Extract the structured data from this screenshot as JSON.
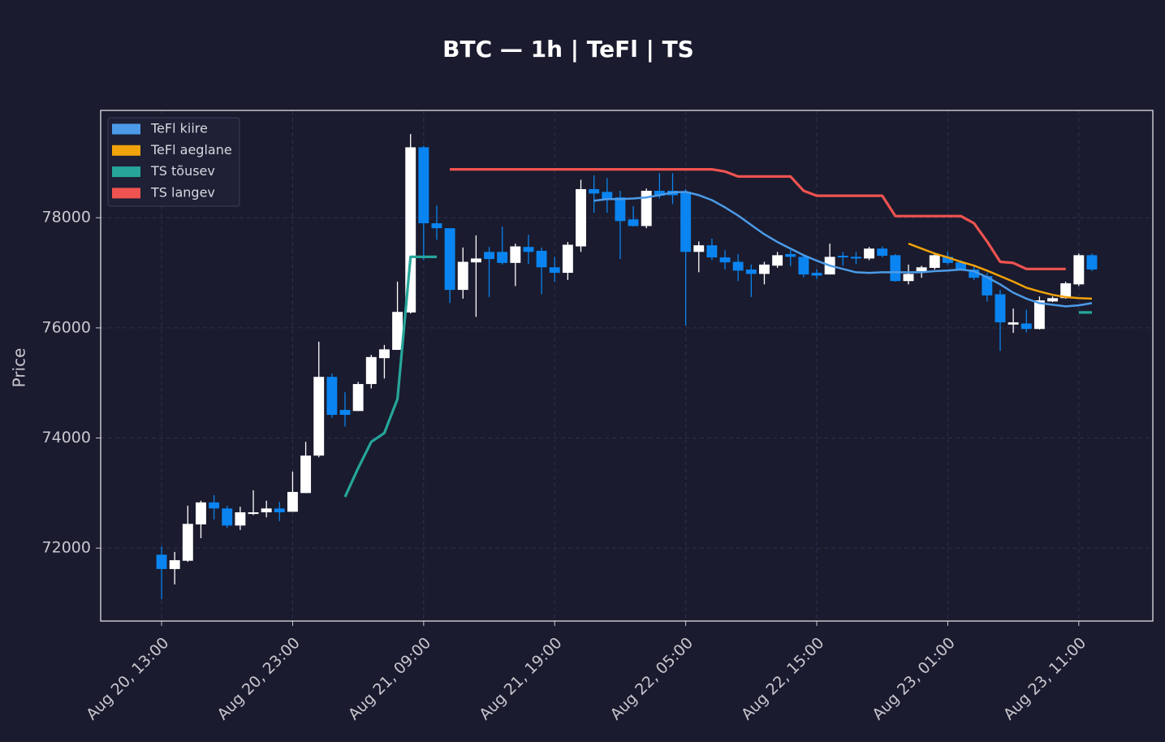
{
  "chart_data": {
    "type": "candlestick",
    "title": "BTC — 1h  |  TeFl  |  TS",
    "ylabel": "Price",
    "x": [
      "Aug 20, 13:00",
      "Aug 20, 14:00",
      "Aug 20, 15:00",
      "Aug 20, 16:00",
      "Aug 20, 17:00",
      "Aug 20, 18:00",
      "Aug 20, 19:00",
      "Aug 20, 20:00",
      "Aug 20, 21:00",
      "Aug 20, 22:00",
      "Aug 20, 23:00",
      "Aug 21, 00:00",
      "Aug 21, 01:00",
      "Aug 21, 02:00",
      "Aug 21, 03:00",
      "Aug 21, 04:00",
      "Aug 21, 05:00",
      "Aug 21, 06:00",
      "Aug 21, 07:00",
      "Aug 21, 08:00",
      "Aug 21, 09:00",
      "Aug 21, 10:00",
      "Aug 21, 11:00",
      "Aug 21, 12:00",
      "Aug 21, 13:00",
      "Aug 21, 14:00",
      "Aug 21, 15:00",
      "Aug 21, 16:00",
      "Aug 21, 17:00",
      "Aug 21, 18:00",
      "Aug 21, 19:00",
      "Aug 21, 20:00",
      "Aug 21, 21:00",
      "Aug 21, 22:00",
      "Aug 21, 23:00",
      "Aug 22, 00:00",
      "Aug 22, 01:00",
      "Aug 22, 02:00",
      "Aug 22, 03:00",
      "Aug 22, 04:00",
      "Aug 22, 05:00",
      "Aug 22, 06:00",
      "Aug 22, 07:00",
      "Aug 22, 08:00",
      "Aug 22, 09:00",
      "Aug 22, 10:00",
      "Aug 22, 11:00",
      "Aug 22, 12:00",
      "Aug 22, 13:00",
      "Aug 22, 14:00",
      "Aug 22, 15:00",
      "Aug 22, 16:00",
      "Aug 22, 17:00",
      "Aug 22, 18:00",
      "Aug 22, 19:00",
      "Aug 22, 20:00",
      "Aug 22, 21:00",
      "Aug 22, 22:00",
      "Aug 22, 23:00",
      "Aug 23, 00:00",
      "Aug 23, 01:00",
      "Aug 23, 02:00",
      "Aug 23, 03:00",
      "Aug 23, 04:00",
      "Aug 23, 05:00",
      "Aug 23, 06:00",
      "Aug 23, 07:00",
      "Aug 23, 08:00",
      "Aug 23, 09:00",
      "Aug 23, 10:00",
      "Aug 23, 11:00",
      "Aug 23, 12:00"
    ],
    "xticks": [
      "Aug 20, 13:00",
      "Aug 20, 23:00",
      "Aug 21, 09:00",
      "Aug 21, 19:00",
      "Aug 22, 05:00",
      "Aug 22, 15:00",
      "Aug 23, 01:00",
      "Aug 23, 11:00"
    ],
    "open": [
      71880,
      71620,
      71770,
      72430,
      72830,
      72720,
      72410,
      72620,
      72650,
      72720,
      72660,
      73000,
      73680,
      75110,
      74510,
      74490,
      74980,
      75450,
      75600,
      76280,
      79280,
      77900,
      77810,
      76690,
      77190,
      77380,
      77380,
      77180,
      77470,
      77400,
      77100,
      77000,
      77480,
      78520,
      78470,
      78370,
      77970,
      77850,
      78490,
      78490,
      78470,
      77380,
      77500,
      77280,
      77200,
      77060,
      76980,
      77130,
      77340,
      77290,
      77000,
      76970,
      77310,
      77290,
      77260,
      77440,
      77320,
      76850,
      77030,
      77090,
      77290,
      77190,
      77060,
      76940,
      76610,
      76060,
      76080,
      75980,
      76480,
      76540,
      76790,
      77320
    ],
    "high": [
      72030,
      71930,
      72770,
      72860,
      72960,
      72770,
      72750,
      73050,
      72860,
      72840,
      73390,
      73930,
      75750,
      75170,
      74830,
      75020,
      75510,
      75690,
      76840,
      79520,
      79310,
      78220,
      77810,
      77460,
      77680,
      77470,
      77840,
      77530,
      77690,
      77460,
      77290,
      77560,
      78690,
      78770,
      78720,
      78490,
      78210,
      78530,
      78810,
      78810,
      78520,
      77570,
      77620,
      77410,
      77340,
      77150,
      77200,
      77380,
      77410,
      77340,
      77070,
      77530,
      77380,
      77380,
      77470,
      77480,
      77340,
      77150,
      77130,
      77350,
      77380,
      77230,
      77120,
      77000,
      76690,
      76350,
      76330,
      76570,
      76570,
      76840,
      77350,
      77350
    ],
    "low": [
      71070,
      71340,
      71750,
      72180,
      72520,
      72370,
      72330,
      72600,
      72560,
      72490,
      72660,
      73000,
      73650,
      74370,
      74210,
      74490,
      74900,
      75080,
      75600,
      76260,
      77230,
      77600,
      76450,
      76530,
      76200,
      76560,
      77150,
      76760,
      77160,
      76610,
      76840,
      76870,
      77380,
      78090,
      78090,
      77250,
      77840,
      77810,
      78350,
      78250,
      76040,
      77010,
      77230,
      77060,
      76850,
      76560,
      76790,
      77090,
      77120,
      76920,
      76890,
      76970,
      77130,
      77160,
      77230,
      77280,
      76840,
      76790,
      76910,
      77060,
      77150,
      77040,
      76870,
      76480,
      75580,
      75910,
      75920,
      75970,
      76470,
      76530,
      76760,
      77030
    ],
    "close": [
      71620,
      71780,
      72440,
      72830,
      72720,
      72410,
      72650,
      72650,
      72720,
      72650,
      73020,
      73680,
      75110,
      74420,
      74420,
      74980,
      75470,
      75610,
      76290,
      79280,
      77900,
      77810,
      76690,
      77200,
      77260,
      77250,
      77180,
      77480,
      77380,
      77100,
      77000,
      77510,
      78520,
      78440,
      78320,
      77940,
      77850,
      78490,
      78400,
      78410,
      77380,
      77500,
      77280,
      77190,
      77040,
      76980,
      77150,
      77320,
      77290,
      76970,
      76950,
      77290,
      77280,
      77260,
      77440,
      77310,
      76850,
      76980,
      77100,
      77320,
      77180,
      77060,
      76910,
      76590,
      76100,
      76100,
      75980,
      76500,
      76540,
      76810,
      77320,
      77060
    ],
    "up_color": "#ffffff",
    "down_color": "#0a84f0",
    "series": [
      {
        "name": "TeFl kiire",
        "color": "#4c9be8",
        "values": [
          null,
          null,
          null,
          null,
          null,
          null,
          null,
          null,
          null,
          null,
          null,
          null,
          null,
          null,
          null,
          null,
          null,
          null,
          null,
          null,
          null,
          null,
          null,
          null,
          null,
          null,
          null,
          null,
          null,
          null,
          null,
          null,
          null,
          78310,
          78340,
          78340,
          78350,
          78370,
          78410,
          78460,
          78470,
          78410,
          78320,
          78190,
          78040,
          77870,
          77700,
          77560,
          77440,
          77320,
          77220,
          77130,
          77070,
          77010,
          77000,
          77010,
          77010,
          77010,
          77010,
          77030,
          77040,
          77060,
          77030,
          76920,
          76790,
          76640,
          76530,
          76450,
          76420,
          76390,
          76410,
          76450
        ]
      },
      {
        "name": "TeFl aeglane",
        "color": "#f0a30a",
        "values": [
          null,
          null,
          null,
          null,
          null,
          null,
          null,
          null,
          null,
          null,
          null,
          null,
          null,
          null,
          null,
          null,
          null,
          null,
          null,
          null,
          null,
          null,
          null,
          null,
          null,
          null,
          null,
          null,
          null,
          null,
          null,
          null,
          null,
          null,
          null,
          null,
          null,
          null,
          null,
          null,
          null,
          null,
          null,
          null,
          null,
          null,
          null,
          null,
          null,
          null,
          null,
          null,
          null,
          null,
          null,
          null,
          null,
          77530,
          77440,
          77350,
          77280,
          77200,
          77130,
          77040,
          76940,
          76840,
          76730,
          76660,
          76600,
          76560,
          76540,
          76530
        ]
      },
      {
        "name": "TS tõusev",
        "color": "#26a69a",
        "values": [
          null,
          null,
          null,
          null,
          null,
          null,
          null,
          null,
          null,
          null,
          null,
          null,
          null,
          null,
          72930,
          73450,
          73930,
          74090,
          74710,
          77290,
          77290,
          77290,
          null,
          null,
          null,
          null,
          null,
          null,
          null,
          null,
          null,
          null,
          null,
          null,
          null,
          null,
          null,
          null,
          null,
          null,
          null,
          null,
          null,
          null,
          null,
          null,
          null,
          null,
          null,
          null,
          null,
          null,
          null,
          null,
          null,
          null,
          null,
          null,
          null,
          null,
          null,
          null,
          null,
          null,
          null,
          null,
          null,
          null,
          null,
          null,
          76280,
          76280
        ]
      },
      {
        "name": "TS langev",
        "color": "#ef5350",
        "values": [
          null,
          null,
          null,
          null,
          null,
          null,
          null,
          null,
          null,
          null,
          null,
          null,
          null,
          null,
          null,
          null,
          null,
          null,
          null,
          null,
          null,
          null,
          78880,
          78880,
          78880,
          78880,
          78880,
          78880,
          78880,
          78880,
          78880,
          78880,
          78880,
          78880,
          78880,
          78880,
          78880,
          78880,
          78880,
          78880,
          78880,
          78880,
          78880,
          78840,
          78750,
          78750,
          78750,
          78750,
          78750,
          78490,
          78400,
          78400,
          78400,
          78400,
          78400,
          78400,
          78030,
          78030,
          78030,
          78030,
          78030,
          78030,
          77900,
          77570,
          77200,
          77180,
          77070,
          77070,
          77070,
          77070,
          null,
          null
        ]
      }
    ],
    "ylim": [
      70675,
      79950
    ],
    "yticks": [
      72000,
      74000,
      76000,
      78000
    ],
    "grid": true,
    "legend": "upper left"
  }
}
